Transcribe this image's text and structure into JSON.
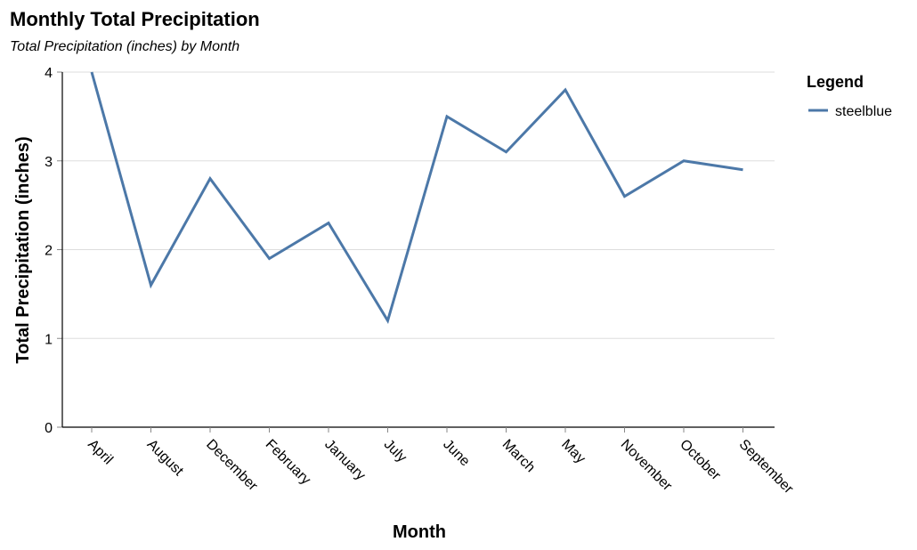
{
  "chart_data": {
    "type": "line",
    "title": "Monthly Total Precipitation",
    "subtitle": "Total Precipitation (inches) by Month",
    "xlabel": "Month",
    "ylabel": "Total Precipitation (inches)",
    "categories": [
      "April",
      "August",
      "December",
      "February",
      "January",
      "July",
      "June",
      "March",
      "May",
      "November",
      "October",
      "September"
    ],
    "series": [
      {
        "name": "steelblue",
        "color": "#4c78a8",
        "values": [
          4.0,
          1.6,
          2.8,
          1.9,
          2.3,
          1.2,
          3.5,
          3.1,
          3.8,
          2.6,
          3.0,
          2.9
        ]
      }
    ],
    "ylim": [
      0,
      4
    ],
    "yticks": [
      "0",
      "1",
      "2",
      "3",
      "4"
    ],
    "grid": true,
    "legend": {
      "title": "Legend",
      "placement": "right"
    }
  }
}
